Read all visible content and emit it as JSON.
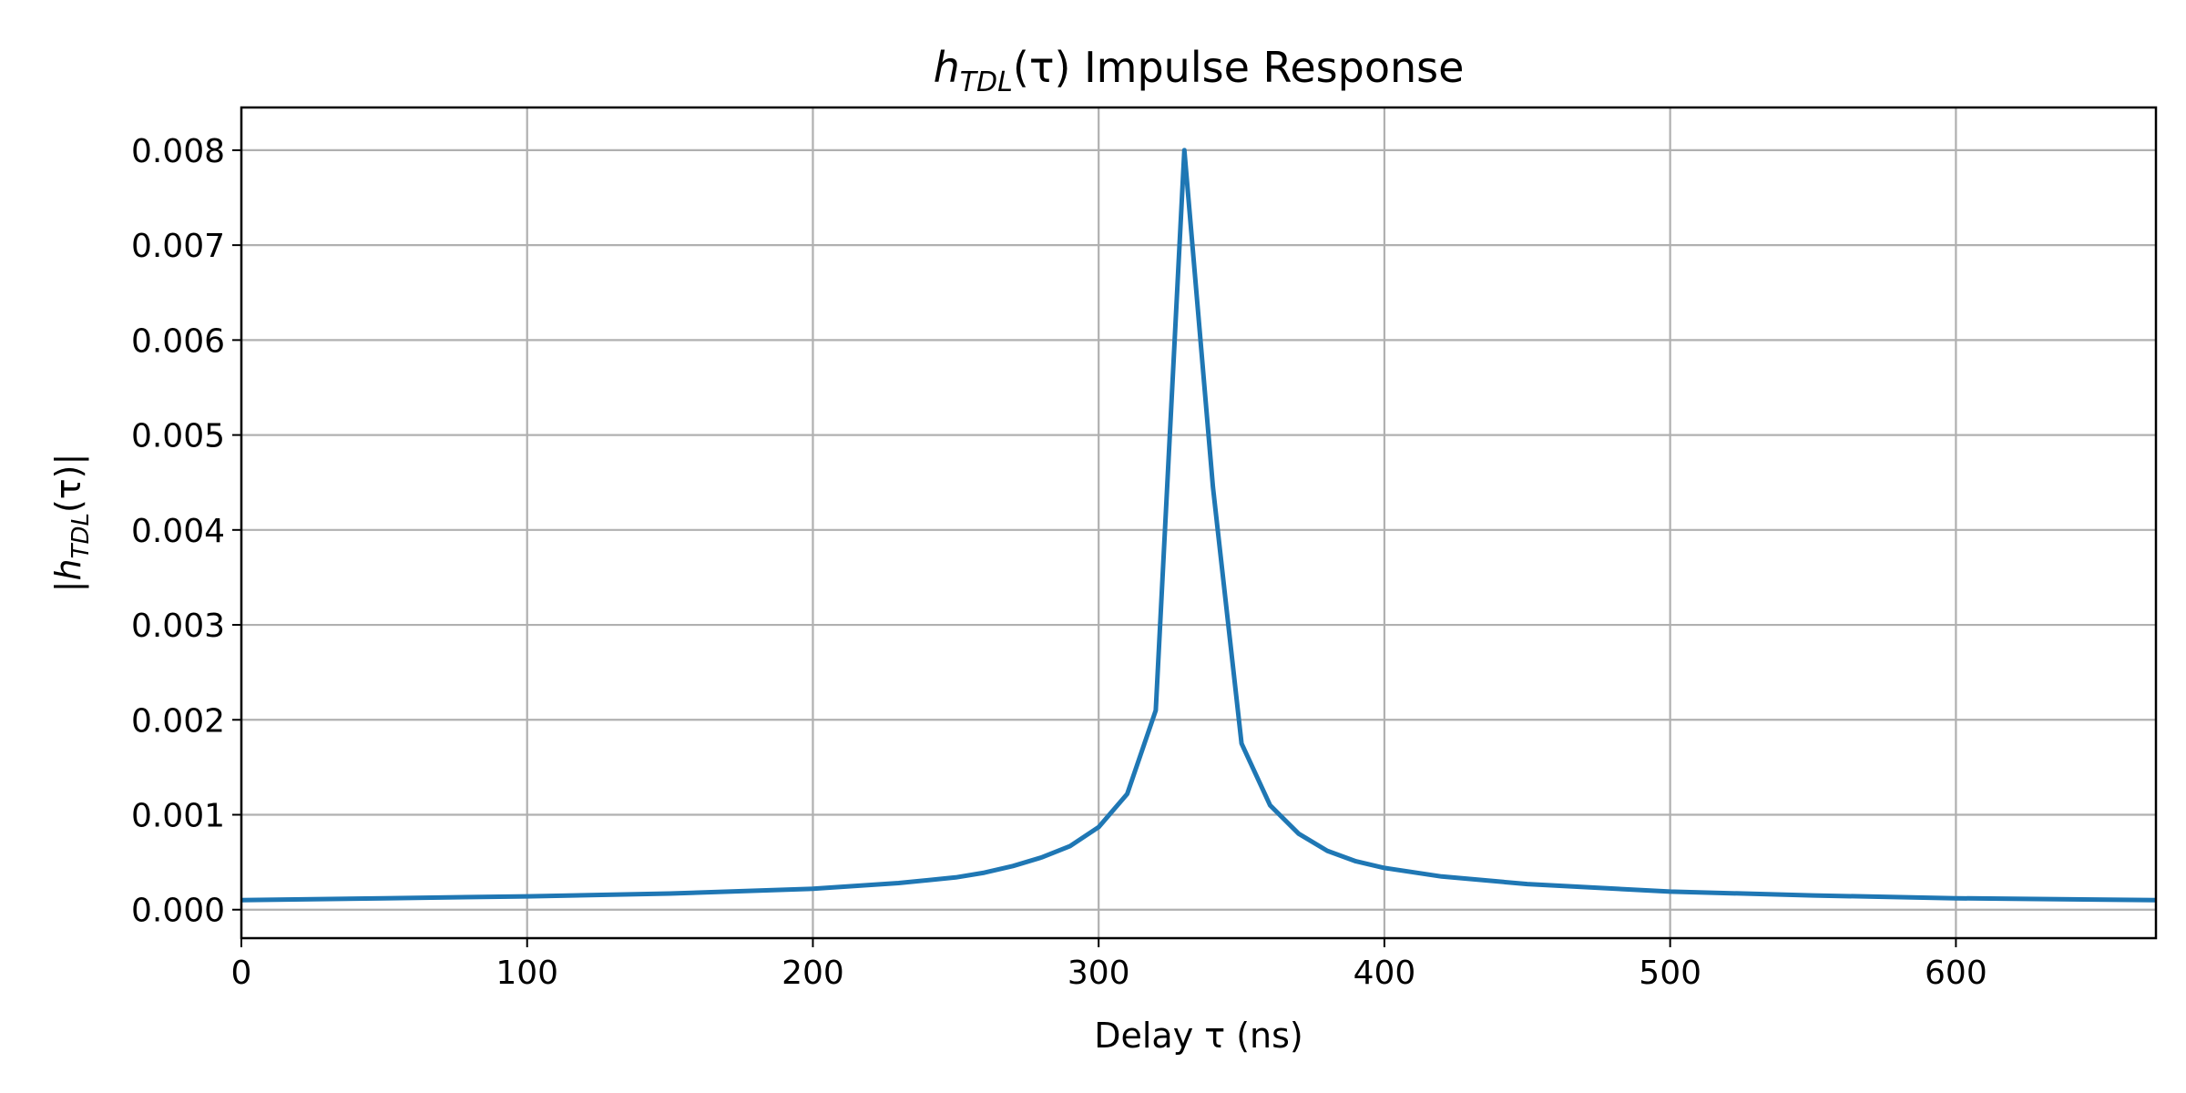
{
  "chart_data": {
    "type": "line",
    "title": {
      "symbol": "h",
      "subscript": "TDL",
      "argument": "(τ)",
      "rest": " Impulse Response"
    },
    "xlabel": "Delay τ (ns)",
    "ylabel": {
      "prefix": "|",
      "symbol": "h",
      "subscript": "TDL",
      "argument": "(τ)|"
    },
    "xlim": [
      0,
      670
    ],
    "ylim": [
      -0.0003,
      0.00845
    ],
    "xticks": [
      0,
      100,
      200,
      300,
      400,
      500,
      600
    ],
    "xtick_labels": [
      "0",
      "100",
      "200",
      "300",
      "400",
      "500",
      "600"
    ],
    "yticks": [
      0,
      0.001,
      0.002,
      0.003,
      0.004,
      0.005,
      0.006,
      0.007,
      0.008
    ],
    "ytick_labels": [
      "0.000",
      "0.001",
      "0.002",
      "0.003",
      "0.004",
      "0.005",
      "0.006",
      "0.007",
      "0.008"
    ],
    "grid": true,
    "series": [
      {
        "color": "#1f77b4",
        "x": [
          0,
          50,
          100,
          150,
          200,
          230,
          250,
          260,
          270,
          280,
          290,
          300,
          310,
          320,
          330,
          340,
          350,
          360,
          370,
          380,
          390,
          400,
          420,
          450,
          500,
          550,
          600,
          670
        ],
        "y": [
          0.0001,
          0.00012,
          0.00014,
          0.00017,
          0.00022,
          0.00028,
          0.00034,
          0.00039,
          0.00046,
          0.00055,
          0.00067,
          0.00087,
          0.00122,
          0.0021,
          0.008,
          0.00445,
          0.00175,
          0.0011,
          0.0008,
          0.00062,
          0.00051,
          0.00044,
          0.00035,
          0.00027,
          0.00019,
          0.00015,
          0.00012,
          0.0001
        ]
      }
    ]
  }
}
